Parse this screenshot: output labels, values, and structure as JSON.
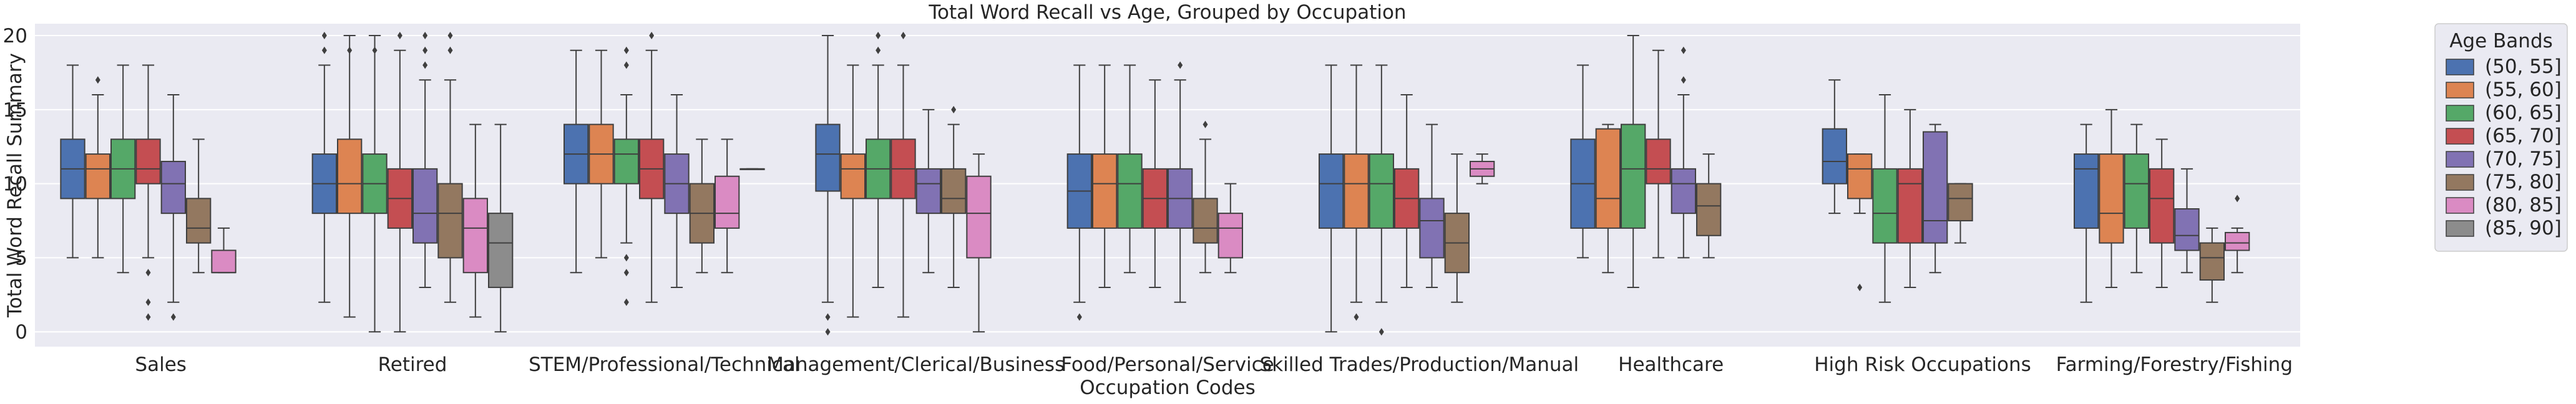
{
  "chart_data": {
    "type": "box",
    "title": "Total Word Recall vs Age, Grouped by Occupation",
    "xlabel": "Occupation Codes",
    "ylabel": "Total Word Recall Summary",
    "ylim": [
      -1,
      20.8
    ],
    "yticks": [
      0,
      5,
      10,
      15,
      20
    ],
    "grid": true,
    "legend": {
      "title": "Age Bands",
      "placement": "outside-right-top"
    },
    "categories": [
      "Sales",
      "Retired",
      "STEM/Professional/Technical",
      "Management/Clerical/Business",
      "Food/Personal/Service",
      "Skilled Trades/Production/Manual",
      "Healthcare",
      "High Risk Occupations",
      "Farming/Forestry/Fishing"
    ],
    "series": [
      {
        "name": "(50, 55]",
        "color": "#4c72b0",
        "boxes": [
          {
            "min": 5,
            "q1": 9,
            "median": 11,
            "q3": 13,
            "max": 18,
            "outliers": []
          },
          {
            "min": 2,
            "q1": 8,
            "median": 10,
            "q3": 12,
            "max": 18,
            "outliers": [
              19,
              20
            ]
          },
          {
            "min": 4,
            "q1": 10,
            "median": 12,
            "q3": 14,
            "max": 19,
            "outliers": []
          },
          {
            "min": 2,
            "q1": 9.5,
            "median": 12,
            "q3": 14,
            "max": 20,
            "outliers": [
              0,
              1
            ]
          },
          {
            "min": 2,
            "q1": 7,
            "median": 9.5,
            "q3": 12,
            "max": 18,
            "outliers": [
              1
            ]
          },
          {
            "min": 0,
            "q1": 7,
            "median": 10,
            "q3": 12,
            "max": 18,
            "outliers": []
          },
          {
            "min": 5,
            "q1": 7,
            "median": 10,
            "q3": 13,
            "max": 18,
            "outliers": []
          },
          {
            "min": 8,
            "q1": 10,
            "median": 11.5,
            "q3": 13.7,
            "max": 17,
            "outliers": []
          },
          {
            "min": 2,
            "q1": 7,
            "median": 11,
            "q3": 12,
            "max": 14,
            "outliers": []
          }
        ]
      },
      {
        "name": "(55, 60]",
        "color": "#dd8452",
        "boxes": [
          {
            "min": 5,
            "q1": 9,
            "median": 11,
            "q3": 12,
            "max": 16,
            "outliers": [
              17
            ]
          },
          {
            "min": 1,
            "q1": 8,
            "median": 10,
            "q3": 13,
            "max": 20,
            "outliers": [
              19
            ]
          },
          {
            "min": 5,
            "q1": 10,
            "median": 12,
            "q3": 14,
            "max": 19,
            "outliers": []
          },
          {
            "min": 1,
            "q1": 9,
            "median": 11,
            "q3": 12,
            "max": 18,
            "outliers": []
          },
          {
            "min": 3,
            "q1": 7,
            "median": 10,
            "q3": 12,
            "max": 18,
            "outliers": []
          },
          {
            "min": 2,
            "q1": 7,
            "median": 10,
            "q3": 12,
            "max": 18,
            "outliers": [
              1
            ]
          },
          {
            "min": 4,
            "q1": 7,
            "median": 9,
            "q3": 13.7,
            "max": 14,
            "outliers": []
          },
          {
            "min": 8,
            "q1": 9,
            "median": 11,
            "q3": 12,
            "max": 12,
            "outliers": [
              3
            ]
          },
          {
            "min": 3,
            "q1": 6,
            "median": 8,
            "q3": 12,
            "max": 15,
            "outliers": []
          }
        ]
      },
      {
        "name": "(60, 65]",
        "color": "#55a868",
        "boxes": [
          {
            "min": 4,
            "q1": 9,
            "median": 11,
            "q3": 13,
            "max": 18,
            "outliers": []
          },
          {
            "min": 0,
            "q1": 8,
            "median": 10,
            "q3": 12,
            "max": 20,
            "outliers": [
              19
            ]
          },
          {
            "min": 6,
            "q1": 10,
            "median": 12,
            "q3": 13,
            "max": 16,
            "outliers": [
              2,
              4,
              5,
              18,
              19
            ]
          },
          {
            "min": 3,
            "q1": 9,
            "median": 11,
            "q3": 13,
            "max": 18,
            "outliers": [
              19,
              20
            ]
          },
          {
            "min": 4,
            "q1": 7,
            "median": 10,
            "q3": 12,
            "max": 18,
            "outliers": []
          },
          {
            "min": 2,
            "q1": 7,
            "median": 10,
            "q3": 12,
            "max": 18,
            "outliers": [
              0
            ]
          },
          {
            "min": 3,
            "q1": 7,
            "median": 11,
            "q3": 14,
            "max": 20,
            "outliers": []
          },
          {
            "min": 2,
            "q1": 6,
            "median": 8,
            "q3": 11,
            "max": 16,
            "outliers": []
          },
          {
            "min": 4,
            "q1": 7,
            "median": 10,
            "q3": 12,
            "max": 14,
            "outliers": []
          }
        ]
      },
      {
        "name": "(65, 70]",
        "color": "#c44e52",
        "boxes": [
          {
            "min": 5,
            "q1": 10,
            "median": 11,
            "q3": 13,
            "max": 18,
            "outliers": [
              1,
              2,
              4
            ]
          },
          {
            "min": 0,
            "q1": 7,
            "median": 9,
            "q3": 11,
            "max": 19,
            "outliers": [
              20
            ]
          },
          {
            "min": 2,
            "q1": 9,
            "median": 11,
            "q3": 13,
            "max": 19,
            "outliers": [
              20
            ]
          },
          {
            "min": 1,
            "q1": 9,
            "median": 11,
            "q3": 13,
            "max": 18,
            "outliers": [
              20
            ]
          },
          {
            "min": 3,
            "q1": 7,
            "median": 9,
            "q3": 11,
            "max": 17,
            "outliers": []
          },
          {
            "min": 3,
            "q1": 7,
            "median": 9,
            "q3": 11,
            "max": 16,
            "outliers": []
          },
          {
            "min": 5,
            "q1": 10,
            "median": 11,
            "q3": 13,
            "max": 19,
            "outliers": []
          },
          {
            "min": 3,
            "q1": 6,
            "median": 10,
            "q3": 11,
            "max": 15,
            "outliers": []
          },
          {
            "min": 3,
            "q1": 6,
            "median": 9,
            "q3": 11,
            "max": 13,
            "outliers": []
          }
        ]
      },
      {
        "name": "(70, 75]",
        "color": "#8172b3",
        "boxes": [
          {
            "min": 2,
            "q1": 8,
            "median": 10,
            "q3": 11.5,
            "max": 16,
            "outliers": [
              1
            ]
          },
          {
            "min": 3,
            "q1": 6,
            "median": 8,
            "q3": 11,
            "max": 17,
            "outliers": [
              18,
              19,
              20
            ]
          },
          {
            "min": 3,
            "q1": 8,
            "median": 10,
            "q3": 12,
            "max": 16,
            "outliers": []
          },
          {
            "min": 4,
            "q1": 8,
            "median": 10,
            "q3": 11,
            "max": 15,
            "outliers": []
          },
          {
            "min": 2,
            "q1": 7,
            "median": 9,
            "q3": 11,
            "max": 17,
            "outliers": [
              18
            ]
          },
          {
            "min": 3,
            "q1": 5,
            "median": 7.5,
            "q3": 9,
            "max": 14,
            "outliers": []
          },
          {
            "min": 5,
            "q1": 8,
            "median": 10,
            "q3": 11,
            "max": 16,
            "outliers": [
              17,
              19
            ]
          },
          {
            "min": 4,
            "q1": 6,
            "median": 7.5,
            "q3": 13.5,
            "max": 14,
            "outliers": []
          },
          {
            "min": 4,
            "q1": 5.5,
            "median": 6.5,
            "q3": 8.3,
            "max": 11,
            "outliers": []
          }
        ]
      },
      {
        "name": "(75, 80]",
        "color": "#937860",
        "boxes": [
          {
            "min": 4,
            "q1": 6,
            "median": 7,
            "q3": 9,
            "max": 13,
            "outliers": []
          },
          {
            "min": 2,
            "q1": 5,
            "median": 8,
            "q3": 10,
            "max": 17,
            "outliers": [
              19,
              20
            ]
          },
          {
            "min": 4,
            "q1": 6,
            "median": 8,
            "q3": 10,
            "max": 13,
            "outliers": []
          },
          {
            "min": 3,
            "q1": 8,
            "median": 9,
            "q3": 11,
            "max": 14,
            "outliers": [
              15
            ]
          },
          {
            "min": 4,
            "q1": 6,
            "median": 7,
            "q3": 9,
            "max": 13,
            "outliers": [
              14
            ]
          },
          {
            "min": 2,
            "q1": 4,
            "median": 6,
            "q3": 8,
            "max": 12,
            "outliers": []
          },
          {
            "min": 5,
            "q1": 6.5,
            "median": 8.5,
            "q3": 10,
            "max": 12,
            "outliers": []
          },
          {
            "min": 6,
            "q1": 7.5,
            "median": 9,
            "q3": 10,
            "max": 10,
            "outliers": []
          },
          {
            "min": 2,
            "q1": 3.5,
            "median": 5,
            "q3": 6,
            "max": 7,
            "outliers": []
          }
        ]
      },
      {
        "name": "(80, 85]",
        "color": "#da8bc3",
        "boxes": [
          {
            "min": 4,
            "q1": 4,
            "median": 4,
            "q3": 5.5,
            "max": 7,
            "outliers": []
          },
          {
            "min": 1,
            "q1": 4,
            "median": 7,
            "q3": 9,
            "max": 14,
            "outliers": []
          },
          {
            "min": 4,
            "q1": 7,
            "median": 8,
            "q3": 10.5,
            "max": 13,
            "outliers": []
          },
          {
            "min": 0,
            "q1": 5,
            "median": 8,
            "q3": 10.5,
            "max": 12,
            "outliers": []
          },
          {
            "min": 4,
            "q1": 5,
            "median": 7,
            "q3": 8,
            "max": 10,
            "outliers": []
          },
          {
            "min": 10,
            "q1": 10.5,
            "median": 11,
            "q3": 11.5,
            "max": 12,
            "outliers": []
          },
          null,
          null,
          {
            "min": 4,
            "q1": 5.5,
            "median": 6,
            "q3": 6.7,
            "max": 7,
            "outliers": [
              9
            ]
          }
        ]
      },
      {
        "name": "(85, 90]",
        "color": "#8c8c8c",
        "boxes": [
          null,
          {
            "min": 0,
            "q1": 3,
            "median": 6,
            "q3": 8,
            "max": 14,
            "outliers": []
          },
          {
            "min": 11,
            "q1": 11,
            "median": 11,
            "q3": 11,
            "max": 11,
            "outliers": []
          },
          null,
          null,
          null,
          null,
          null,
          null
        ]
      }
    ]
  }
}
